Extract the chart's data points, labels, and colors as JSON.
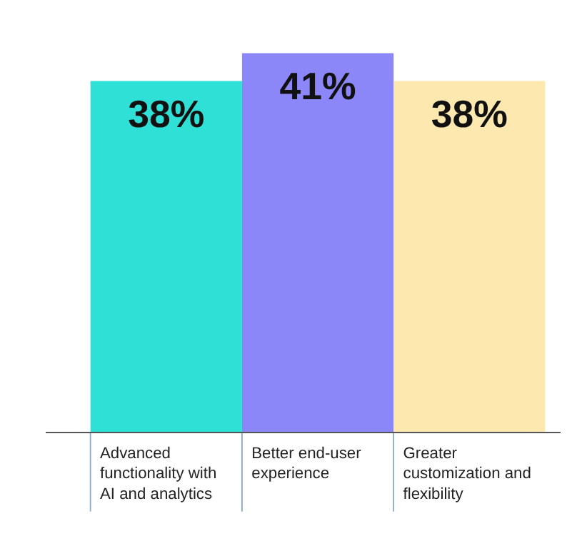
{
  "chart_data": {
    "type": "bar",
    "categories": [
      "Advanced functionality with AI and analytics",
      "Better end-user experience",
      "Greater customization and flexibility"
    ],
    "values": [
      38,
      41,
      38
    ],
    "colors": [
      "#2ee0d6",
      "#8c87f8",
      "#fde8b0"
    ],
    "value_labels": [
      "38%",
      "41%",
      "38%"
    ],
    "legend": false
  }
}
